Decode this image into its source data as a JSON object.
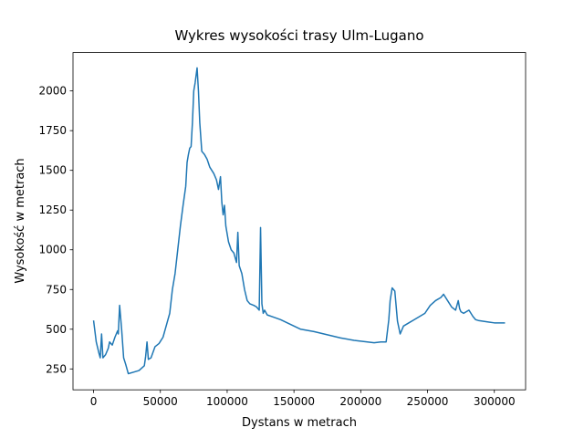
{
  "chart_data": {
    "type": "line",
    "title": "Wykres wysokości trasy Ulm-Lugano",
    "x_label": "Dystans w metrach",
    "y_label": "Wysokość w metrach",
    "color": "#1f77b4",
    "x": [
      0,
      2000,
      4000,
      5000,
      6000,
      7000,
      9000,
      11000,
      12000,
      14000,
      16000,
      17000,
      18000,
      18500,
      19500,
      21000,
      22500,
      24000,
      26000,
      30000,
      34000,
      38000,
      39000,
      40000,
      41000,
      43000,
      46000,
      49000,
      52000,
      55000,
      57000,
      59000,
      61000,
      63000,
      65000,
      67000,
      69000,
      70000,
      71000,
      72000,
      73000,
      74000,
      75000,
      76000,
      77500,
      78500,
      79500,
      81000,
      83000,
      85000,
      87000,
      90000,
      92000,
      93500,
      95000,
      96000,
      97000,
      98000,
      99000,
      101000,
      103000,
      105000,
      107000,
      108000,
      109000,
      111000,
      113000,
      115000,
      117000,
      120000,
      122000,
      124000,
      125000,
      126000,
      127000,
      128000,
      130000,
      135000,
      140000,
      145000,
      150000,
      155000,
      165000,
      175000,
      185000,
      195000,
      205000,
      210000,
      215000,
      219000,
      221000,
      222000,
      223500,
      225500,
      227500,
      229500,
      232000,
      236000,
      240000,
      244000,
      248000,
      252000,
      256000,
      260000,
      262000,
      265000,
      268000,
      271000,
      273000,
      274000,
      275000,
      277000,
      281000,
      284000,
      286000,
      288000,
      292000,
      296000,
      300000,
      304000,
      308000
    ],
    "values": [
      555,
      420,
      350,
      320,
      470,
      320,
      340,
      380,
      420,
      400,
      450,
      470,
      490,
      470,
      650,
      500,
      320,
      280,
      220,
      230,
      240,
      270,
      330,
      420,
      310,
      320,
      390,
      410,
      450,
      540,
      600,
      750,
      850,
      1000,
      1150,
      1280,
      1400,
      1550,
      1600,
      1640,
      1650,
      1800,
      2000,
      2050,
      2145,
      2000,
      1800,
      1620,
      1600,
      1570,
      1520,
      1480,
      1440,
      1380,
      1460,
      1300,
      1220,
      1280,
      1150,
      1050,
      1000,
      980,
      920,
      1110,
      900,
      850,
      750,
      680,
      660,
      650,
      640,
      620,
      1140,
      660,
      600,
      620,
      590,
      575,
      560,
      540,
      520,
      500,
      485,
      465,
      445,
      430,
      420,
      415,
      420,
      420,
      560,
      680,
      760,
      740,
      550,
      470,
      520,
      540,
      560,
      580,
      600,
      650,
      680,
      700,
      720,
      680,
      640,
      620,
      680,
      630,
      610,
      600,
      620,
      580,
      560,
      555,
      550,
      545,
      540,
      540,
      540
    ],
    "xlim": [
      -15400,
      323400
    ],
    "ylim": [
      118.5,
      2241.5
    ],
    "xticks": [
      0,
      50000,
      100000,
      150000,
      200000,
      250000,
      300000
    ],
    "yticks": [
      250,
      500,
      750,
      1000,
      1250,
      1500,
      1750,
      2000
    ]
  }
}
